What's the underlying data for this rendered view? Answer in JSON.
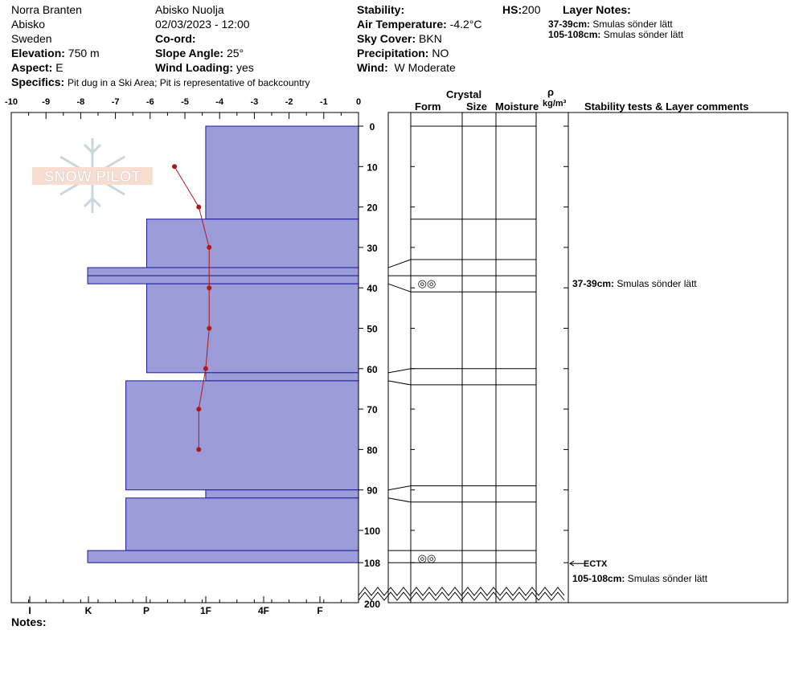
{
  "header": {
    "location": "Norra Branten",
    "region": "Abisko",
    "country": "Sweden",
    "elevation_label": "Elevation:",
    "elevation": "750 m",
    "aspect_label": "Aspect:",
    "aspect": "E",
    "observer": "Abisko Nuolja",
    "datetime": "02/03/2023 - 12:00",
    "coord_label": "Co-ord:",
    "slope_label": "Slope Angle:",
    "slope": "25°",
    "wind_loading_label": "Wind Loading:",
    "wind_loading": "yes",
    "stability_label": "Stability:",
    "air_temp_label": "Air Temperature:",
    "air_temp": "-4.2°C",
    "sky_label": "Sky Cover:",
    "sky": "BKN",
    "precip_label": "Precipitation:",
    "precip": "NO",
    "wind_label": "Wind:",
    "wind": "W Moderate",
    "hs_label": "HS:",
    "hs": "200",
    "specifics_label": "Specifics:",
    "specifics": "Pit dug in a Ski Area; Pit is representative of backcountry",
    "layer_notes_title": "Layer Notes:",
    "layer_notes": [
      {
        "range": "37-39cm:",
        "text": "Smulas sönder lätt"
      },
      {
        "range": "105-108cm:",
        "text": "Smulas sönder lätt"
      }
    ]
  },
  "columns": {
    "crystal": "Crystal",
    "form": "Form",
    "size": "Size",
    "moisture": "Moisture",
    "rho": "ρ",
    "density_unit": "kg/m³",
    "stability": "Stability tests & Layer comments"
  },
  "logo_text": "SNOW PILOT",
  "notes_label": "Notes:",
  "colors": {
    "hardness_fill": "#9c9cd8",
    "hardness_stroke": "#1a1aa0",
    "temp": "#b01818"
  },
  "chart_data": {
    "type": "snow-profile",
    "temperature_axis": {
      "ticks": [
        "-10",
        "-9",
        "-8",
        "-7",
        "-6",
        "-5",
        "-4",
        "-3",
        "-2",
        "-1",
        "0"
      ],
      "range": [
        -10,
        0
      ]
    },
    "hardness_axis": {
      "ticks": [
        "I",
        "K",
        "P",
        "1F",
        "4F",
        "F"
      ]
    },
    "depth_axis": {
      "ticks": [
        "0",
        "10",
        "20",
        "30",
        "40",
        "50",
        "60",
        "70",
        "80",
        "90",
        "100",
        "108",
        "200"
      ]
    },
    "temperature_profile": [
      {
        "depth": 10,
        "temp": -5.3
      },
      {
        "depth": 20,
        "temp": -4.6
      },
      {
        "depth": 30,
        "temp": -4.3
      },
      {
        "depth": 40,
        "temp": -4.3
      },
      {
        "depth": 50,
        "temp": -4.3
      },
      {
        "depth": 60,
        "temp": -4.4
      },
      {
        "depth": 70,
        "temp": -4.6
      },
      {
        "depth": 80,
        "temp": -4.6
      }
    ],
    "layers": [
      {
        "top": 0,
        "bottom": 23,
        "hardness": 4.4
      },
      {
        "top": 23,
        "bottom": 35,
        "hardness": 6.1
      },
      {
        "top": 35,
        "bottom": 37,
        "hardness": 7.8
      },
      {
        "top": 37,
        "bottom": 39,
        "hardness": 7.8
      },
      {
        "top": 39,
        "bottom": 61,
        "hardness": 6.1
      },
      {
        "top": 61,
        "bottom": 63,
        "hardness": 4.4
      },
      {
        "top": 63,
        "bottom": 90,
        "hardness": 6.7
      },
      {
        "top": 90,
        "bottom": 92,
        "hardness": 4.4
      },
      {
        "top": 92,
        "bottom": 105,
        "hardness": 6.7
      },
      {
        "top": 105,
        "bottom": 108,
        "hardness": 7.8
      }
    ],
    "form_lines": [
      0,
      23,
      33,
      37,
      41,
      60,
      64,
      89,
      93,
      105,
      108
    ],
    "crystal_symbols": [
      {
        "depth": 39,
        "symbol": "◎◎"
      },
      {
        "depth": 107,
        "symbol": "◎◎"
      }
    ],
    "stability_tests": [
      {
        "depth": 108,
        "label": "ECTX"
      }
    ],
    "layer_comments": [
      {
        "depth": 39,
        "range": "37-39cm:",
        "text": "Smulas sönder lätt"
      },
      {
        "depth": 108,
        "range": "105-108cm:",
        "text": "Smulas sönder lätt"
      }
    ]
  }
}
